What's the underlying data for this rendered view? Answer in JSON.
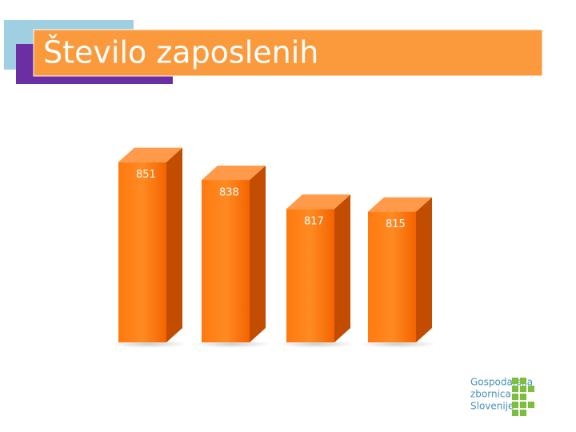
{
  "chart_data": {
    "type": "bar3d",
    "title": "Število zaposlenih",
    "values": [
      851,
      838,
      817,
      815
    ],
    "color": "#ff6a00",
    "ylim": [
      720,
      870
    ]
  },
  "logo": {
    "lines": [
      "Gospodarska",
      "zbornica",
      "Slovenije"
    ]
  }
}
